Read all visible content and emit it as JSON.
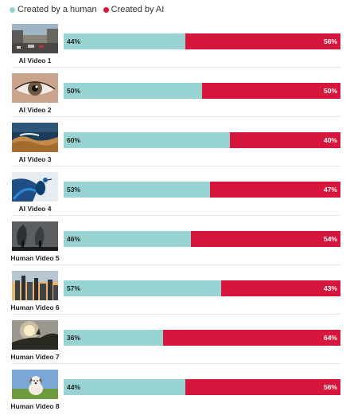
{
  "legend": {
    "human_label": "Created by a human",
    "ai_label": "Created by AI",
    "human_color": "#97d3d1",
    "ai_color": "#d6163c"
  },
  "chart_data": {
    "type": "bar",
    "orientation": "horizontal-stacked-100",
    "categories": [
      "AI Video 1",
      "AI Video 2",
      "AI Video 3",
      "AI Video 4",
      "Human Video 5",
      "Human Video 6",
      "Human Video 7",
      "Human Video 8"
    ],
    "series": [
      {
        "name": "Created by a human",
        "color": "#97d3d1",
        "values": [
          44,
          50,
          60,
          53,
          46,
          57,
          36,
          44
        ]
      },
      {
        "name": "Created by AI",
        "color": "#d6163c",
        "values": [
          56,
          50,
          40,
          47,
          54,
          43,
          64,
          56
        ]
      }
    ],
    "unit": "%",
    "ylim": [
      0,
      100
    ],
    "legend_position": "top-left",
    "grid": false
  },
  "thumbnails": [
    "city-street-thumbnail",
    "eye-closeup-thumbnail",
    "coastline-waves-thumbnail",
    "peacock-thumbnail",
    "smokestacks-thumbnail",
    "city-skyline-thumbnail",
    "sunset-hill-thumbnail",
    "dog-field-thumbnail"
  ]
}
